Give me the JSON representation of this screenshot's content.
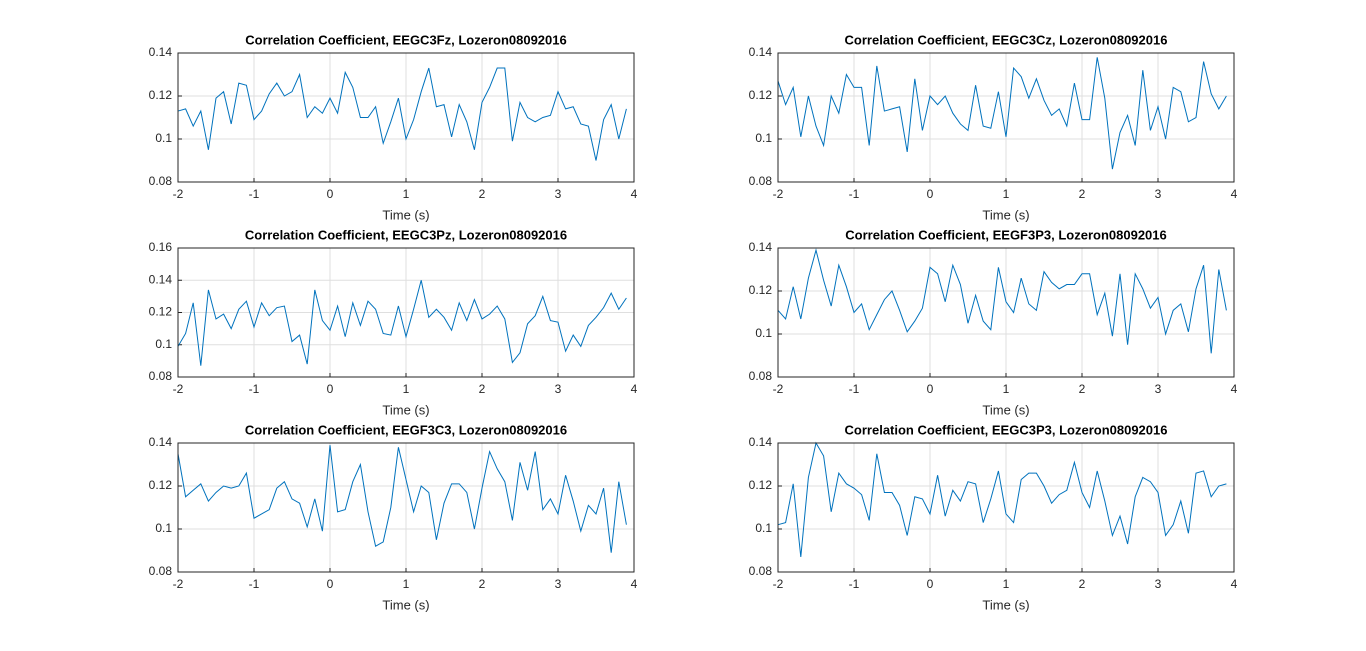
{
  "chart_data": [
    {
      "type": "line",
      "title": "Correlation Coefficient, EEGC3Fz, Lozeron08092016",
      "xlabel": "Time (s)",
      "color": "#0072bd",
      "grid": true,
      "xlim": [
        -2,
        4
      ],
      "xticks": [
        -2,
        -1,
        0,
        1,
        2,
        3,
        4
      ],
      "ylim": [
        0.08,
        0.14
      ],
      "yticks": [
        0.08,
        0.1,
        0.12,
        0.14
      ],
      "x": [
        -2,
        -1.9,
        -1.8,
        -1.7,
        -1.6,
        -1.5,
        -1.4,
        -1.3,
        -1.2,
        -1.1,
        -1,
        -0.9,
        -0.8,
        -0.7,
        -0.6,
        -0.5,
        -0.4,
        -0.3,
        -0.2,
        -0.1,
        0,
        0.1,
        0.2,
        0.3,
        0.4,
        0.5,
        0.6,
        0.7,
        0.8,
        0.9,
        1,
        1.1,
        1.2,
        1.3,
        1.4,
        1.5,
        1.6,
        1.7,
        1.8,
        1.9,
        2,
        2.1,
        2.2,
        2.3,
        2.4,
        2.5,
        2.6,
        2.7,
        2.8,
        2.9,
        3,
        3.1,
        3.2,
        3.3,
        3.4,
        3.5,
        3.6,
        3.7,
        3.8,
        3.9
      ],
      "values": [
        0.113,
        0.114,
        0.106,
        0.113,
        0.095,
        0.119,
        0.122,
        0.107,
        0.126,
        0.125,
        0.109,
        0.113,
        0.121,
        0.126,
        0.12,
        0.122,
        0.13,
        0.11,
        0.115,
        0.112,
        0.119,
        0.112,
        0.131,
        0.124,
        0.11,
        0.11,
        0.115,
        0.098,
        0.108,
        0.119,
        0.1,
        0.109,
        0.122,
        0.133,
        0.115,
        0.116,
        0.101,
        0.116,
        0.108,
        0.095,
        0.117,
        0.124,
        0.133,
        0.133,
        0.099,
        0.117,
        0.11,
        0.108,
        0.11,
        0.111,
        0.122,
        0.114,
        0.115,
        0.107,
        0.106,
        0.09,
        0.109,
        0.116,
        0.1,
        0.114
      ]
    },
    {
      "type": "line",
      "title": "Correlation Coefficient, EEGC3Cz, Lozeron08092016",
      "xlabel": "Time (s)",
      "color": "#0072bd",
      "grid": true,
      "xlim": [
        -2,
        4
      ],
      "xticks": [
        -2,
        -1,
        0,
        1,
        2,
        3,
        4
      ],
      "ylim": [
        0.08,
        0.14
      ],
      "yticks": [
        0.08,
        0.1,
        0.12,
        0.14
      ],
      "x": [
        -2,
        -1.9,
        -1.8,
        -1.7,
        -1.6,
        -1.5,
        -1.4,
        -1.3,
        -1.2,
        -1.1,
        -1,
        -0.9,
        -0.8,
        -0.7,
        -0.6,
        -0.5,
        -0.4,
        -0.3,
        -0.2,
        -0.1,
        0,
        0.1,
        0.2,
        0.3,
        0.4,
        0.5,
        0.6,
        0.7,
        0.8,
        0.9,
        1,
        1.1,
        1.2,
        1.3,
        1.4,
        1.5,
        1.6,
        1.7,
        1.8,
        1.9,
        2,
        2.1,
        2.2,
        2.3,
        2.4,
        2.5,
        2.6,
        2.7,
        2.8,
        2.9,
        3,
        3.1,
        3.2,
        3.3,
        3.4,
        3.5,
        3.6,
        3.7,
        3.8,
        3.9
      ],
      "values": [
        0.127,
        0.116,
        0.124,
        0.101,
        0.12,
        0.106,
        0.097,
        0.12,
        0.112,
        0.13,
        0.124,
        0.124,
        0.097,
        0.134,
        0.113,
        0.114,
        0.115,
        0.094,
        0.128,
        0.104,
        0.12,
        0.116,
        0.12,
        0.112,
        0.107,
        0.104,
        0.125,
        0.106,
        0.105,
        0.122,
        0.101,
        0.133,
        0.129,
        0.119,
        0.128,
        0.118,
        0.111,
        0.114,
        0.106,
        0.126,
        0.109,
        0.109,
        0.138,
        0.119,
        0.086,
        0.103,
        0.111,
        0.097,
        0.132,
        0.104,
        0.115,
        0.1,
        0.124,
        0.122,
        0.108,
        0.11,
        0.136,
        0.121,
        0.114,
        0.12
      ]
    },
    {
      "type": "line",
      "title": "Correlation Coefficient, EEGC3Pz, Lozeron08092016",
      "xlabel": "Time (s)",
      "color": "#0072bd",
      "grid": true,
      "xlim": [
        -2,
        4
      ],
      "xticks": [
        -2,
        -1,
        0,
        1,
        2,
        3,
        4
      ],
      "ylim": [
        0.08,
        0.16
      ],
      "yticks": [
        0.08,
        0.1,
        0.12,
        0.14,
        0.16
      ],
      "x": [
        -2,
        -1.9,
        -1.8,
        -1.7,
        -1.6,
        -1.5,
        -1.4,
        -1.3,
        -1.2,
        -1.1,
        -1,
        -0.9,
        -0.8,
        -0.7,
        -0.6,
        -0.5,
        -0.4,
        -0.3,
        -0.2,
        -0.1,
        0,
        0.1,
        0.2,
        0.3,
        0.4,
        0.5,
        0.6,
        0.7,
        0.8,
        0.9,
        1,
        1.1,
        1.2,
        1.3,
        1.4,
        1.5,
        1.6,
        1.7,
        1.8,
        1.9,
        2,
        2.1,
        2.2,
        2.3,
        2.4,
        2.5,
        2.6,
        2.7,
        2.8,
        2.9,
        3,
        3.1,
        3.2,
        3.3,
        3.4,
        3.5,
        3.6,
        3.7,
        3.8,
        3.9
      ],
      "values": [
        0.099,
        0.107,
        0.126,
        0.087,
        0.134,
        0.116,
        0.119,
        0.11,
        0.122,
        0.127,
        0.111,
        0.126,
        0.118,
        0.123,
        0.124,
        0.102,
        0.106,
        0.088,
        0.134,
        0.115,
        0.109,
        0.124,
        0.105,
        0.126,
        0.112,
        0.127,
        0.122,
        0.107,
        0.106,
        0.124,
        0.105,
        0.122,
        0.14,
        0.117,
        0.122,
        0.117,
        0.109,
        0.126,
        0.115,
        0.128,
        0.116,
        0.119,
        0.124,
        0.116,
        0.089,
        0.095,
        0.113,
        0.118,
        0.13,
        0.115,
        0.114,
        0.096,
        0.106,
        0.099,
        0.112,
        0.117,
        0.123,
        0.132,
        0.122,
        0.129
      ]
    },
    {
      "type": "line",
      "title": "Correlation Coefficient, EEGF3P3, Lozeron08092016",
      "xlabel": "Time (s)",
      "color": "#0072bd",
      "grid": true,
      "xlim": [
        -2,
        4
      ],
      "xticks": [
        -2,
        -1,
        0,
        1,
        2,
        3,
        4
      ],
      "ylim": [
        0.08,
        0.14
      ],
      "yticks": [
        0.08,
        0.1,
        0.12,
        0.14
      ],
      "x": [
        -2,
        -1.9,
        -1.8,
        -1.7,
        -1.6,
        -1.5,
        -1.4,
        -1.3,
        -1.2,
        -1.1,
        -1,
        -0.9,
        -0.8,
        -0.7,
        -0.6,
        -0.5,
        -0.4,
        -0.3,
        -0.2,
        -0.1,
        0,
        0.1,
        0.2,
        0.3,
        0.4,
        0.5,
        0.6,
        0.7,
        0.8,
        0.9,
        1,
        1.1,
        1.2,
        1.3,
        1.4,
        1.5,
        1.6,
        1.7,
        1.8,
        1.9,
        2,
        2.1,
        2.2,
        2.3,
        2.4,
        2.5,
        2.6,
        2.7,
        2.8,
        2.9,
        3,
        3.1,
        3.2,
        3.3,
        3.4,
        3.5,
        3.6,
        3.7,
        3.8,
        3.9
      ],
      "values": [
        0.111,
        0.107,
        0.122,
        0.107,
        0.126,
        0.139,
        0.125,
        0.113,
        0.132,
        0.122,
        0.11,
        0.114,
        0.102,
        0.109,
        0.116,
        0.12,
        0.111,
        0.101,
        0.106,
        0.112,
        0.131,
        0.128,
        0.115,
        0.132,
        0.123,
        0.105,
        0.118,
        0.106,
        0.102,
        0.131,
        0.115,
        0.11,
        0.126,
        0.114,
        0.111,
        0.129,
        0.124,
        0.121,
        0.123,
        0.123,
        0.128,
        0.128,
        0.109,
        0.119,
        0.099,
        0.128,
        0.095,
        0.128,
        0.121,
        0.112,
        0.117,
        0.1,
        0.111,
        0.114,
        0.101,
        0.121,
        0.132,
        0.091,
        0.13,
        0.111
      ]
    },
    {
      "type": "line",
      "title": "Correlation Coefficient, EEGF3C3, Lozeron08092016",
      "xlabel": "Time (s)",
      "color": "#0072bd",
      "grid": true,
      "xlim": [
        -2,
        4
      ],
      "xticks": [
        -2,
        -1,
        0,
        1,
        2,
        3,
        4
      ],
      "ylim": [
        0.08,
        0.14
      ],
      "yticks": [
        0.08,
        0.1,
        0.12,
        0.14
      ],
      "x": [
        -2,
        -1.9,
        -1.8,
        -1.7,
        -1.6,
        -1.5,
        -1.4,
        -1.3,
        -1.2,
        -1.1,
        -1,
        -0.9,
        -0.8,
        -0.7,
        -0.6,
        -0.5,
        -0.4,
        -0.3,
        -0.2,
        -0.1,
        0,
        0.1,
        0.2,
        0.3,
        0.4,
        0.5,
        0.6,
        0.7,
        0.8,
        0.9,
        1,
        1.1,
        1.2,
        1.3,
        1.4,
        1.5,
        1.6,
        1.7,
        1.8,
        1.9,
        2,
        2.1,
        2.2,
        2.3,
        2.4,
        2.5,
        2.6,
        2.7,
        2.8,
        2.9,
        3,
        3.1,
        3.2,
        3.3,
        3.4,
        3.5,
        3.6,
        3.7,
        3.8,
        3.9
      ],
      "values": [
        0.135,
        0.115,
        0.118,
        0.121,
        0.113,
        0.117,
        0.12,
        0.119,
        0.12,
        0.126,
        0.105,
        0.107,
        0.109,
        0.119,
        0.122,
        0.114,
        0.112,
        0.101,
        0.114,
        0.099,
        0.139,
        0.108,
        0.109,
        0.122,
        0.13,
        0.108,
        0.092,
        0.094,
        0.11,
        0.138,
        0.123,
        0.108,
        0.12,
        0.117,
        0.095,
        0.112,
        0.121,
        0.121,
        0.117,
        0.1,
        0.119,
        0.136,
        0.128,
        0.122,
        0.104,
        0.131,
        0.118,
        0.136,
        0.109,
        0.114,
        0.107,
        0.125,
        0.113,
        0.099,
        0.111,
        0.107,
        0.119,
        0.089,
        0.122,
        0.102
      ]
    },
    {
      "type": "line",
      "title": "Correlation Coefficient, EEGC3P3, Lozeron08092016",
      "xlabel": "Time (s)",
      "color": "#0072bd",
      "grid": true,
      "xlim": [
        -2,
        4
      ],
      "xticks": [
        -2,
        -1,
        0,
        1,
        2,
        3,
        4
      ],
      "ylim": [
        0.08,
        0.14
      ],
      "yticks": [
        0.08,
        0.1,
        0.12,
        0.14
      ],
      "x": [
        -2,
        -1.9,
        -1.8,
        -1.7,
        -1.6,
        -1.5,
        -1.4,
        -1.3,
        -1.2,
        -1.1,
        -1,
        -0.9,
        -0.8,
        -0.7,
        -0.6,
        -0.5,
        -0.4,
        -0.3,
        -0.2,
        -0.1,
        0,
        0.1,
        0.2,
        0.3,
        0.4,
        0.5,
        0.6,
        0.7,
        0.8,
        0.9,
        1,
        1.1,
        1.2,
        1.3,
        1.4,
        1.5,
        1.6,
        1.7,
        1.8,
        1.9,
        2,
        2.1,
        2.2,
        2.3,
        2.4,
        2.5,
        2.6,
        2.7,
        2.8,
        2.9,
        3,
        3.1,
        3.2,
        3.3,
        3.4,
        3.5,
        3.6,
        3.7,
        3.8,
        3.9
      ],
      "values": [
        0.102,
        0.103,
        0.121,
        0.087,
        0.124,
        0.14,
        0.134,
        0.108,
        0.126,
        0.121,
        0.119,
        0.116,
        0.104,
        0.135,
        0.117,
        0.117,
        0.111,
        0.097,
        0.115,
        0.114,
        0.107,
        0.125,
        0.106,
        0.118,
        0.113,
        0.122,
        0.121,
        0.103,
        0.114,
        0.127,
        0.107,
        0.103,
        0.123,
        0.126,
        0.126,
        0.12,
        0.112,
        0.116,
        0.118,
        0.131,
        0.117,
        0.11,
        0.127,
        0.113,
        0.097,
        0.106,
        0.093,
        0.115,
        0.124,
        0.122,
        0.117,
        0.097,
        0.102,
        0.113,
        0.098,
        0.126,
        0.127,
        0.115,
        0.12,
        0.121
      ]
    }
  ]
}
